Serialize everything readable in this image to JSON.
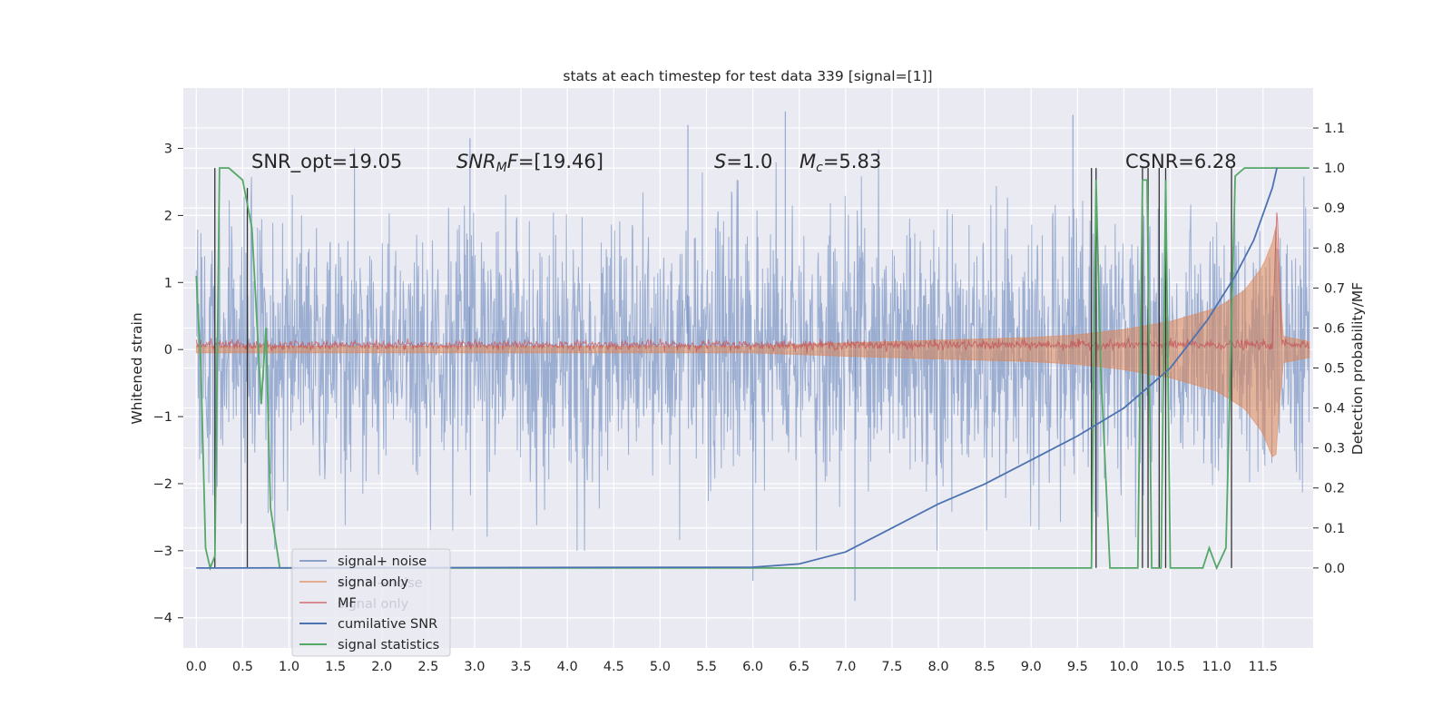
{
  "chart_data": {
    "type": "line",
    "title": "stats at each timestep for test data 339 [signal=[1]]",
    "xlabel": "",
    "ylabel": "Whitened strain",
    "ylabel_right": "Detection probability/MF",
    "xlim": [
      -0.14,
      12.04
    ],
    "ylim": [
      -4.45,
      3.9
    ],
    "ylim_right": [
      -0.2,
      1.2
    ],
    "x_ticks": [
      0.0,
      0.5,
      1.0,
      1.5,
      2.0,
      2.5,
      3.0,
      3.5,
      4.0,
      4.5,
      5.0,
      5.5,
      6.0,
      6.5,
      7.0,
      7.5,
      8.0,
      8.5,
      9.0,
      9.5,
      10.0,
      10.5,
      11.0,
      11.5
    ],
    "x_tick_labels": [
      "0.0",
      "0.5",
      "1.0",
      "1.5",
      "2.0",
      "2.5",
      "3.0",
      "3.5",
      "4.0",
      "4.5",
      "5.0",
      "5.5",
      "6.0",
      "6.5",
      "7.0",
      "7.5",
      "8.0",
      "8.5",
      "9.0",
      "9.5",
      "10.0",
      "10.5",
      "11.0",
      "11.5"
    ],
    "y_ticks": [
      -4,
      -3,
      -2,
      -1,
      0,
      1,
      2,
      3
    ],
    "y_tick_labels": [
      "−4",
      "−3",
      "−2",
      "−1",
      "0",
      "1",
      "2",
      "3"
    ],
    "y_right_ticks": [
      0.0,
      0.1,
      0.2,
      0.3,
      0.4,
      0.5,
      0.6,
      0.7,
      0.8,
      0.9,
      1.0,
      1.1
    ],
    "y_right_tick_labels": [
      "0.0",
      "0.1",
      "0.2",
      "0.3",
      "0.4",
      "0.5",
      "0.6",
      "0.7",
      "0.8",
      "0.9",
      "1.0",
      "1.1"
    ],
    "grid": true,
    "legend_position": "lower-left",
    "annotations": [
      "SNR_opt=19.05",
      "SNR_MF=[19.46]",
      "S=1.0",
      "M_c=5.83",
      "CSNR=6.28"
    ],
    "legend": [
      {
        "label": "signal+ noise",
        "color": "#4c72b0"
      },
      {
        "label": "signal only",
        "color": "#dd8452"
      },
      {
        "label": "MF",
        "color": "#c44e52"
      },
      {
        "label": "cumilative SNR",
        "color": "#4c72b0"
      },
      {
        "label": "signal statistics",
        "color": "#55a868"
      }
    ],
    "ghost_legend_labels": [
      "signal+noise",
      "signal only"
    ],
    "series": [
      {
        "name": "signal+ noise",
        "axis": "left",
        "amplitude_envelope": [
          [
            0.0,
            1.6
          ],
          [
            11.5,
            1.6
          ],
          [
            12.0,
            1.6
          ]
        ],
        "notable_peaks": [
          [
            5.3,
            3.35
          ],
          [
            6.35,
            3.55
          ],
          [
            9.45,
            3.5
          ],
          [
            2.95,
            3.15
          ],
          [
            7.1,
            -3.75
          ],
          [
            6.0,
            -3.45
          ]
        ]
      },
      {
        "name": "signal only",
        "axis": "left",
        "envelope": [
          [
            0.0,
            0.05
          ],
          [
            6.0,
            0.05
          ],
          [
            7.0,
            0.1
          ],
          [
            8.0,
            0.14
          ],
          [
            9.0,
            0.18
          ],
          [
            9.5,
            0.22
          ],
          [
            10.0,
            0.3
          ],
          [
            10.5,
            0.42
          ],
          [
            11.0,
            0.62
          ],
          [
            11.3,
            0.88
          ],
          [
            11.5,
            1.25
          ],
          [
            11.6,
            1.6
          ],
          [
            11.65,
            1.9
          ],
          [
            11.7,
            0.2
          ],
          [
            12.0,
            0.12
          ]
        ]
      },
      {
        "name": "MF",
        "axis": "left",
        "level": [
          [
            0.0,
            0.07
          ],
          [
            11.6,
            0.07
          ],
          [
            11.65,
            2.15
          ],
          [
            11.7,
            0.1
          ],
          [
            12.0,
            0.07
          ]
        ]
      },
      {
        "name": "cumilative SNR",
        "axis": "right",
        "points": [
          [
            0.0,
            0.0
          ],
          [
            6.0,
            0.002
          ],
          [
            6.5,
            0.01
          ],
          [
            7.0,
            0.04
          ],
          [
            7.5,
            0.1
          ],
          [
            8.0,
            0.16
          ],
          [
            8.5,
            0.21
          ],
          [
            9.0,
            0.27
          ],
          [
            9.5,
            0.33
          ],
          [
            10.0,
            0.4
          ],
          [
            10.5,
            0.5
          ],
          [
            10.9,
            0.62
          ],
          [
            11.2,
            0.73
          ],
          [
            11.4,
            0.82
          ],
          [
            11.6,
            0.95
          ],
          [
            11.65,
            1.0
          ]
        ]
      },
      {
        "name": "signal statistics",
        "axis": "right",
        "points": [
          [
            0.0,
            0.73
          ],
          [
            0.05,
            0.5
          ],
          [
            0.1,
            0.05
          ],
          [
            0.15,
            0.0
          ],
          [
            0.2,
            0.03
          ],
          [
            0.25,
            1.0
          ],
          [
            0.35,
            1.0
          ],
          [
            0.5,
            0.97
          ],
          [
            0.6,
            0.85
          ],
          [
            0.7,
            0.41
          ],
          [
            0.75,
            0.6
          ],
          [
            0.8,
            0.15
          ],
          [
            0.9,
            0.0
          ],
          [
            3.2,
            0.0
          ],
          [
            6.0,
            0.0
          ],
          [
            6.5,
            0.0
          ],
          [
            9.6,
            0.0
          ],
          [
            9.65,
            0.0
          ],
          [
            9.7,
            0.97
          ],
          [
            9.75,
            0.5
          ],
          [
            9.85,
            0.0
          ],
          [
            10.15,
            0.0
          ],
          [
            10.2,
            0.97
          ],
          [
            10.25,
            0.97
          ],
          [
            10.3,
            0.0
          ],
          [
            10.4,
            0.0
          ],
          [
            10.45,
            0.97
          ],
          [
            10.5,
            0.0
          ],
          [
            10.85,
            0.0
          ],
          [
            10.92,
            0.05
          ],
          [
            11.0,
            0.0
          ],
          [
            11.1,
            0.05
          ],
          [
            11.2,
            0.98
          ],
          [
            11.3,
            1.0
          ],
          [
            12.0,
            1.0
          ]
        ]
      }
    ],
    "vertical_markers_right": [
      [
        0.2,
        0.0,
        1.0
      ],
      [
        0.55,
        0.0,
        0.95
      ],
      [
        9.65,
        0.0,
        1.0
      ],
      [
        9.7,
        0.0,
        1.0
      ],
      [
        10.2,
        0.0,
        1.0
      ],
      [
        10.26,
        0.0,
        1.0
      ],
      [
        10.38,
        0.0,
        1.0
      ],
      [
        10.45,
        0.0,
        1.0
      ],
      [
        11.16,
        0.0,
        1.0
      ]
    ],
    "colors": {
      "background": "#eaeaf2",
      "grid": "#ffffff",
      "noise": "#4c72b0",
      "signal_only": "#dd8452",
      "mf": "#c44e52",
      "cumulative": "#4c72b0",
      "statistics": "#55a868",
      "markers": "#333333"
    }
  }
}
